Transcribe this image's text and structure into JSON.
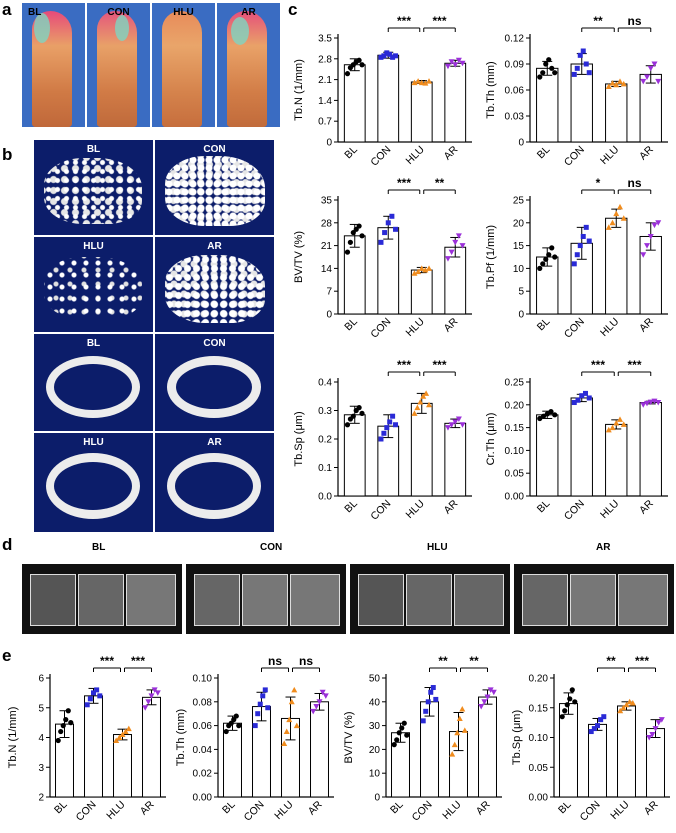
{
  "panels": {
    "a": "a",
    "b": "b",
    "c": "c",
    "d": "d",
    "e": "e"
  },
  "groups": [
    "BL",
    "CON",
    "HLU",
    "AR"
  ],
  "colors": {
    "BL": "#000000",
    "CON": "#2a2ad6",
    "HLU": "#f08c1e",
    "AR": "#9b30d9"
  },
  "panel_a": {
    "labels": [
      "BL",
      "CON",
      "HLU",
      "AR"
    ]
  },
  "panel_b": {
    "labels": [
      "BL",
      "CON",
      "HLU",
      "AR",
      "BL",
      "CON",
      "HLU",
      "AR"
    ]
  },
  "panel_d": {
    "labels": [
      "BL",
      "CON",
      "HLU",
      "AR"
    ]
  },
  "chart_data": [
    {
      "id": "c1",
      "type": "bar",
      "ylabel": "Tb.N (1/mm)",
      "categories": [
        "BL",
        "CON",
        "HLU",
        "AR"
      ],
      "values": [
        2.6,
        2.92,
        2.02,
        2.65
      ],
      "errors": [
        0.2,
        0.1,
        0.05,
        0.1
      ],
      "ylim": [
        0,
        3.5
      ],
      "yticks": [
        "0",
        "0.7",
        "1.4",
        "2.1",
        "2.8",
        "3.5"
      ],
      "sig": [
        {
          "text": "***",
          "from": 1,
          "to": 2
        },
        {
          "text": "***",
          "from": 2,
          "to": 3
        }
      ],
      "points": [
        [
          2.3,
          2.5,
          2.6,
          2.7,
          2.75,
          2.6
        ],
        [
          2.85,
          2.9,
          3.0,
          2.95,
          2.85,
          2.9
        ],
        [
          2.0,
          2.05,
          2.0,
          1.98,
          2.05
        ],
        [
          2.55,
          2.7,
          2.6,
          2.75,
          2.65
        ]
      ]
    },
    {
      "id": "c2",
      "type": "bar",
      "ylabel": "Tb.Th (mm)",
      "categories": [
        "BL",
        "CON",
        "HLU",
        "AR"
      ],
      "values": [
        0.085,
        0.09,
        0.067,
        0.078
      ],
      "errors": [
        0.008,
        0.012,
        0.003,
        0.01
      ],
      "ylim": [
        0,
        0.12
      ],
      "yticks": [
        "0",
        "0.03",
        "0.06",
        "0.09",
        "0.12"
      ],
      "sig": [
        {
          "text": "**",
          "from": 1,
          "to": 2
        },
        {
          "text": "ns",
          "from": 2,
          "to": 3
        }
      ],
      "points": [
        [
          0.075,
          0.08,
          0.09,
          0.095,
          0.085,
          0.08
        ],
        [
          0.078,
          0.085,
          0.1,
          0.105,
          0.09,
          0.08
        ],
        [
          0.064,
          0.068,
          0.066,
          0.07,
          0.067
        ],
        [
          0.07,
          0.075,
          0.085,
          0.09,
          0.07
        ]
      ]
    },
    {
      "id": "c3",
      "type": "bar",
      "ylabel": "BV/TV (%)",
      "categories": [
        "BL",
        "CON",
        "HLU",
        "AR"
      ],
      "values": [
        24,
        26.5,
        13.5,
        20.5
      ],
      "errors": [
        3.5,
        3.5,
        0.8,
        3
      ],
      "ylim": [
        0,
        35
      ],
      "yticks": [
        "0",
        "7",
        "14",
        "21",
        "28",
        "35"
      ],
      "sig": [
        {
          "text": "***",
          "from": 1,
          "to": 2
        },
        {
          "text": "**",
          "from": 2,
          "to": 3
        }
      ],
      "points": [
        [
          19,
          22,
          25,
          26,
          27,
          24
        ],
        [
          22,
          25,
          28,
          30,
          26
        ],
        [
          12.5,
          13,
          14,
          13.5,
          14
        ],
        [
          17,
          19,
          22,
          24,
          21
        ]
      ]
    },
    {
      "id": "c4",
      "type": "bar",
      "ylabel": "Tb.Pf (1/mm)",
      "categories": [
        "BL",
        "CON",
        "HLU",
        "AR"
      ],
      "values": [
        12.5,
        15.5,
        21,
        17
      ],
      "errors": [
        2,
        3.5,
        2,
        3
      ],
      "ylim": [
        0,
        25
      ],
      "yticks": [
        "0",
        "5",
        "10",
        "15",
        "20",
        "25"
      ],
      "sig": [
        {
          "text": "*",
          "from": 1,
          "to": 2
        },
        {
          "text": "ns",
          "from": 2,
          "to": 3
        }
      ],
      "points": [
        [
          10,
          11,
          12,
          13,
          14.5,
          12.5
        ],
        [
          11,
          13,
          15,
          17,
          19,
          16
        ],
        [
          19,
          20,
          22,
          23.5,
          21
        ],
        [
          13,
          15,
          17,
          19.5,
          20
        ]
      ]
    },
    {
      "id": "c5",
      "type": "bar",
      "ylabel": "Tb.Sp (μm)",
      "categories": [
        "BL",
        "CON",
        "HLU",
        "AR"
      ],
      "values": [
        0.285,
        0.245,
        0.325,
        0.255
      ],
      "errors": [
        0.03,
        0.04,
        0.035,
        0.015
      ],
      "ylim": [
        0,
        0.4
      ],
      "yticks": [
        "0.0",
        "0.1",
        "0.2",
        "0.3",
        "0.4"
      ],
      "sig": [
        {
          "text": "***",
          "from": 1,
          "to": 2
        },
        {
          "text": "***",
          "from": 2,
          "to": 3
        }
      ],
      "points": [
        [
          0.25,
          0.27,
          0.28,
          0.3,
          0.31,
          0.29
        ],
        [
          0.2,
          0.22,
          0.24,
          0.26,
          0.28,
          0.25
        ],
        [
          0.29,
          0.31,
          0.33,
          0.35,
          0.36,
          0.32
        ],
        [
          0.24,
          0.25,
          0.26,
          0.27,
          0.25
        ]
      ]
    },
    {
      "id": "c6",
      "type": "bar",
      "ylabel": "Cr.Th (μm)",
      "categories": [
        "BL",
        "CON",
        "HLU",
        "AR"
      ],
      "values": [
        0.178,
        0.215,
        0.157,
        0.205
      ],
      "errors": [
        0.008,
        0.008,
        0.01,
        0.003
      ],
      "ylim": [
        0,
        0.25
      ],
      "yticks": [
        "0.00",
        "0.05",
        "0.10",
        "0.15",
        "0.20",
        "0.25"
      ],
      "sig": [
        {
          "text": "***",
          "from": 1,
          "to": 2
        },
        {
          "text": "***",
          "from": 2,
          "to": 3
        }
      ],
      "points": [
        [
          0.17,
          0.175,
          0.18,
          0.185,
          0.178
        ],
        [
          0.205,
          0.21,
          0.22,
          0.225,
          0.215
        ],
        [
          0.145,
          0.15,
          0.16,
          0.168,
          0.157
        ],
        [
          0.2,
          0.203,
          0.206,
          0.208,
          0.205
        ]
      ]
    },
    {
      "id": "e1",
      "type": "bar",
      "ylabel": "Tb.N (1/mm)",
      "categories": [
        "BL",
        "CON",
        "HLU",
        "AR"
      ],
      "values": [
        4.45,
        5.4,
        4.1,
        5.35
      ],
      "errors": [
        0.45,
        0.25,
        0.18,
        0.25
      ],
      "ylim": [
        2,
        6
      ],
      "yticks": [
        "2",
        "3",
        "4",
        "5",
        "6"
      ],
      "sig": [
        {
          "text": "***",
          "from": 1,
          "to": 2
        },
        {
          "text": "***",
          "from": 2,
          "to": 3
        }
      ],
      "points": [
        [
          3.9,
          4.2,
          4.4,
          4.6,
          4.9,
          4.5
        ],
        [
          5.1,
          5.3,
          5.5,
          5.6,
          5.4
        ],
        [
          3.9,
          4.0,
          4.1,
          4.2,
          4.3
        ],
        [
          5.0,
          5.2,
          5.4,
          5.6,
          5.5
        ]
      ]
    },
    {
      "id": "e2",
      "type": "bar",
      "ylabel": "Tb.Th (mm)",
      "categories": [
        "BL",
        "CON",
        "HLU",
        "AR"
      ],
      "values": [
        0.062,
        0.076,
        0.066,
        0.08
      ],
      "errors": [
        0.006,
        0.012,
        0.018,
        0.007
      ],
      "ylim": [
        0,
        0.1
      ],
      "yticks": [
        "0.00",
        "0.02",
        "0.04",
        "0.06",
        "0.08",
        "0.10"
      ],
      "sig": [
        {
          "text": "ns",
          "from": 1,
          "to": 2
        },
        {
          "text": "ns",
          "from": 2,
          "to": 3
        }
      ],
      "points": [
        [
          0.055,
          0.06,
          0.062,
          0.065,
          0.068,
          0.06
        ],
        [
          0.06,
          0.07,
          0.078,
          0.085,
          0.09,
          0.075
        ],
        [
          0.045,
          0.055,
          0.065,
          0.08,
          0.09,
          0.06
        ],
        [
          0.072,
          0.076,
          0.08,
          0.088,
          0.085
        ]
      ]
    },
    {
      "id": "e3",
      "type": "bar",
      "ylabel": "BV/TV (%)",
      "categories": [
        "BL",
        "CON",
        "HLU",
        "AR"
      ],
      "values": [
        27,
        40,
        27.5,
        42
      ],
      "errors": [
        4,
        6,
        8,
        3
      ],
      "ylim": [
        0,
        50
      ],
      "yticks": [
        "0",
        "10",
        "20",
        "30",
        "40",
        "50"
      ],
      "sig": [
        {
          "text": "**",
          "from": 1,
          "to": 2
        },
        {
          "text": "**",
          "from": 2,
          "to": 3
        }
      ],
      "points": [
        [
          22,
          24,
          27,
          29,
          31,
          26
        ],
        [
          32,
          36,
          40,
          44,
          46,
          41
        ],
        [
          18,
          22,
          27,
          33,
          37,
          28
        ],
        [
          38,
          40,
          42,
          45,
          44
        ]
      ]
    },
    {
      "id": "e4",
      "type": "bar",
      "ylabel": "Tb.Sp (μm)",
      "categories": [
        "BL",
        "CON",
        "HLU",
        "AR"
      ],
      "values": [
        0.157,
        0.122,
        0.153,
        0.115
      ],
      "errors": [
        0.018,
        0.01,
        0.007,
        0.015
      ],
      "ylim": [
        0,
        0.2
      ],
      "yticks": [
        "0.00",
        "0.05",
        "0.10",
        "0.15",
        "0.20"
      ],
      "sig": [
        {
          "text": "**",
          "from": 1,
          "to": 2
        },
        {
          "text": "***",
          "from": 2,
          "to": 3
        }
      ],
      "points": [
        [
          0.135,
          0.145,
          0.155,
          0.165,
          0.18,
          0.16
        ],
        [
          0.11,
          0.115,
          0.12,
          0.13,
          0.135
        ],
        [
          0.145,
          0.15,
          0.155,
          0.16,
          0.158
        ],
        [
          0.1,
          0.105,
          0.115,
          0.125,
          0.13
        ]
      ]
    }
  ]
}
